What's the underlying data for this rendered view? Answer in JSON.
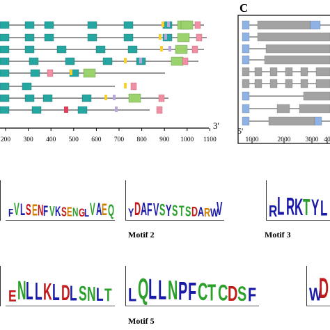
{
  "panel_c": {
    "label": "C",
    "x_ticks": [
      "1000",
      "2000",
      "3000",
      "40"
    ],
    "five_prime": "5'"
  },
  "panel_b": {
    "x_ticks": [
      "200",
      "300",
      "400",
      "500",
      "600",
      "700",
      "800",
      "900",
      "1000",
      "1100"
    ],
    "three_prime": "3'"
  },
  "logos": [
    {
      "caption": "",
      "letters": "FVLSENFVKSENGLVAEQ",
      "colors": [
        "#1a1aa8",
        "#2ca02c",
        "#1a1aa8",
        "#c01a1a",
        "#d08000",
        "#c01a1a",
        "#1a1aa8",
        "#2ca02c",
        "#1a1aa8",
        "#c01a1a",
        "#d08000",
        "#2ca02c",
        "#c01a1a",
        "#1a1aa8",
        "#2ca02c",
        "#1a1aa8",
        "#d08000",
        "#2ca02c"
      ]
    },
    {
      "caption": "Motif 2",
      "letters": "YDAFVSYSTSDARWV",
      "colors": [
        "#1a1aa8",
        "#c01a1a",
        "#1a1aa8",
        "#1a1aa8",
        "#1a1aa8",
        "#2ca02c",
        "#1a1aa8",
        "#2ca02c",
        "#2ca02c",
        "#2ca02c",
        "#c01a1a",
        "#1a1aa8",
        "#d08000",
        "#1a1aa8",
        "#1a1aa8"
      ]
    },
    {
      "caption": "Motif 3",
      "letters": "RLRKTYL",
      "colors": [
        "#1a1aa8",
        "#1a1aa8",
        "#1a1aa8",
        "#1a1aa8",
        "#2ca02c",
        "#1a1aa8",
        "#1a1aa8"
      ]
    },
    {
      "caption": "",
      "letters": "ENLLKLDLSNLT",
      "colors": [
        "#c01a1a",
        "#2ca02c",
        "#1a1aa8",
        "#1a1aa8",
        "#c01a1a",
        "#1a1aa8",
        "#c01a1a",
        "#1a1aa8",
        "#2ca02c",
        "#2ca02c",
        "#1a1aa8",
        "#2ca02c"
      ]
    },
    {
      "caption": "Motif 5",
      "letters": "LQLLNPFCTCDSF",
      "colors": [
        "#1a1aa8",
        "#2ca02c",
        "#1a1aa8",
        "#1a1aa8",
        "#2ca02c",
        "#1a1aa8",
        "#1a1aa8",
        "#2ca02c",
        "#2ca02c",
        "#2ca02c",
        "#c01a1a",
        "#2ca02c",
        "#1a1aa8"
      ]
    },
    {
      "caption": "",
      "letters": "WD",
      "colors": [
        "#1a1aa8",
        "#c01a1a"
      ]
    }
  ],
  "colors": {
    "teal_motif": "#26a6a0",
    "green_motif": "#9cd26e",
    "pink_motif": "#ef8fa4",
    "yellow_motif": "#f6d034",
    "lavender_motif": "#b9a7dc",
    "red_motif": "#e0405c",
    "gray_exon": "#a3a3a3",
    "blue_utr": "#8fb2e6"
  }
}
